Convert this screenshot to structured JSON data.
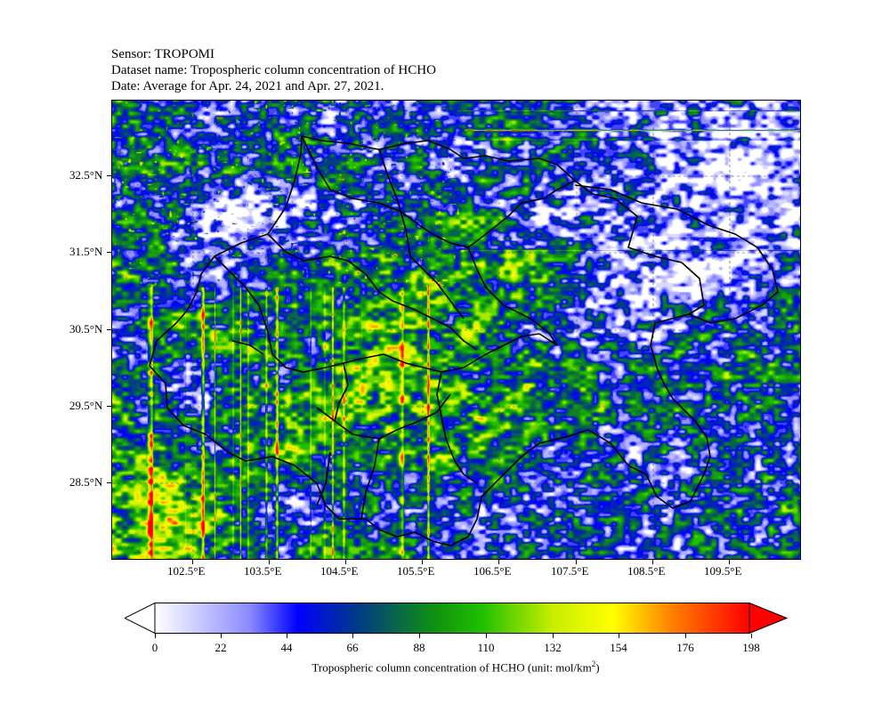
{
  "header": {
    "sensor": "Sensor: TROPOMI",
    "dataset": "Dataset name: Tropospheric column concentration of HCHO",
    "date": "Date: Average for Apr. 24, 2021 and Apr. 27, 2021."
  },
  "axes": {
    "lat_labels": [
      "32.5°N",
      "31.5°N",
      "30.5°N",
      "29.5°N",
      "28.5°N"
    ],
    "lon_labels": [
      "102.5°E",
      "103.5°E",
      "104.5°E",
      "105.5°E",
      "106.5°E",
      "107.5°E",
      "108.5°E",
      "109.5°E"
    ]
  },
  "colorbar": {
    "ticks": [
      "0",
      "22",
      "44",
      "66",
      "88",
      "110",
      "132",
      "154",
      "176",
      "198"
    ],
    "title_main": "Tropospheric column concentration of HCHO (unit: mol/km",
    "title_sup": "2",
    "title_end": ")",
    "colors": [
      "#ffffff",
      "#8080ff",
      "#0000ff",
      "#00c000",
      "#ffff00",
      "#ff8000",
      "#ff0000"
    ]
  },
  "map": {
    "gridlines": "dashed",
    "boundaries_color": "#000000"
  }
}
